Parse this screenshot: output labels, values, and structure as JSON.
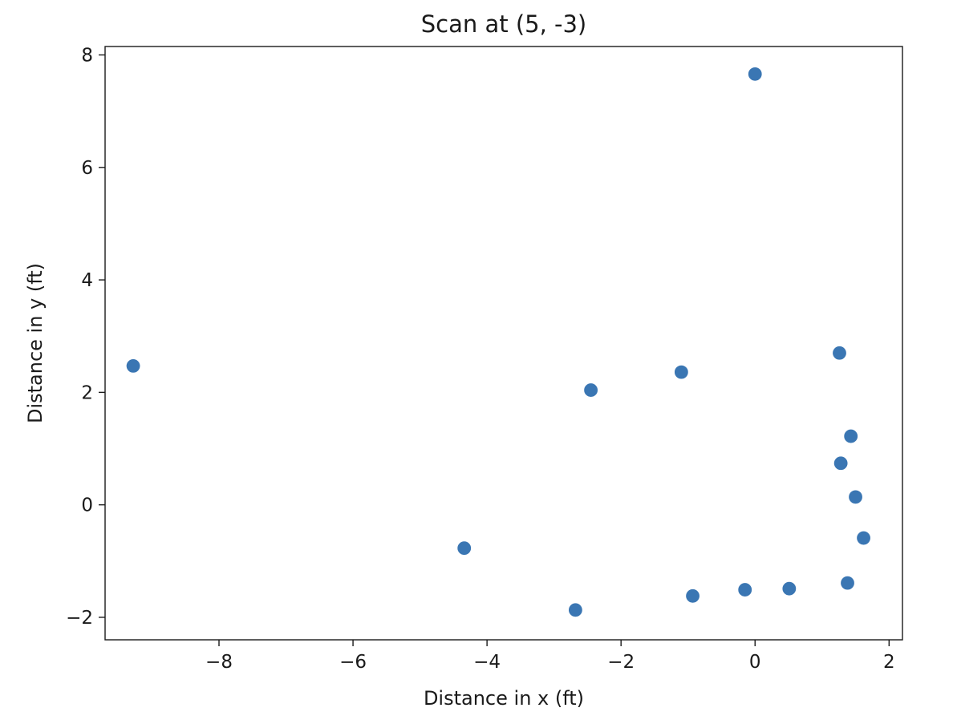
{
  "chart_data": {
    "type": "scatter",
    "title": "Scan at (5, -3)",
    "xlabel": "Distance in x (ft)",
    "ylabel": "Distance in y (ft)",
    "xlim": [
      -9.7,
      2.2
    ],
    "ylim": [
      -2.4,
      8.15
    ],
    "xticks": [
      -8,
      -6,
      -4,
      -2,
      0,
      2
    ],
    "yticks": [
      -2,
      0,
      2,
      4,
      6,
      8
    ],
    "xtick_labels": [
      "−8",
      "−6",
      "−4",
      "−2",
      "0",
      "2"
    ],
    "ytick_labels": [
      "−2",
      "0",
      "2",
      "4",
      "6",
      "8"
    ],
    "grid": false,
    "marker_color": "#3a76b3",
    "points": [
      {
        "x": 0.0,
        "y": 7.66
      },
      {
        "x": -9.28,
        "y": 2.47
      },
      {
        "x": -1.1,
        "y": 2.36
      },
      {
        "x": -2.45,
        "y": 2.04
      },
      {
        "x": 1.26,
        "y": 2.7
      },
      {
        "x": 1.43,
        "y": 1.22
      },
      {
        "x": 1.28,
        "y": 0.74
      },
      {
        "x": 1.5,
        "y": 0.14
      },
      {
        "x": 1.62,
        "y": -0.59
      },
      {
        "x": 1.38,
        "y": -1.39
      },
      {
        "x": 0.51,
        "y": -1.49
      },
      {
        "x": -0.15,
        "y": -1.51
      },
      {
        "x": -0.93,
        "y": -1.62
      },
      {
        "x": -2.68,
        "y": -1.87
      },
      {
        "x": -4.34,
        "y": -0.77
      }
    ]
  }
}
